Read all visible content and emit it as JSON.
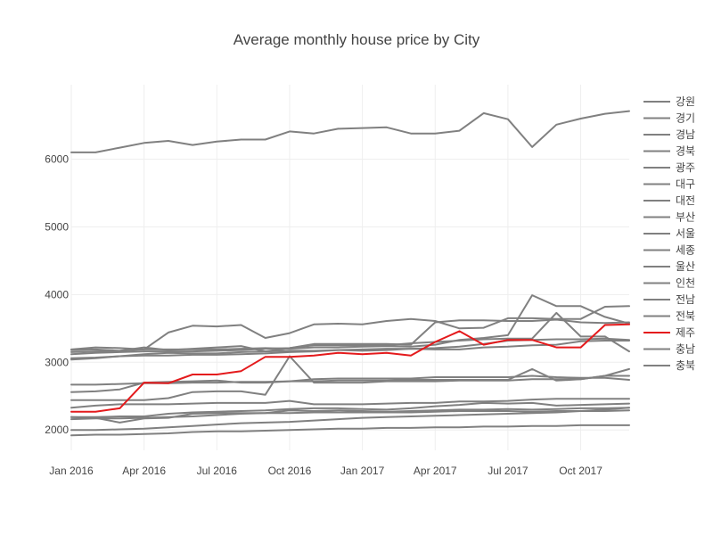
{
  "chart_data": {
    "type": "line",
    "title": "Average monthly house price by City",
    "xlabel": "",
    "ylabel": "",
    "x": [
      "2016-01",
      "2016-02",
      "2016-03",
      "2016-04",
      "2016-05",
      "2016-06",
      "2016-07",
      "2016-08",
      "2016-09",
      "2016-10",
      "2016-11",
      "2016-12",
      "2017-01",
      "2017-02",
      "2017-03",
      "2017-04",
      "2017-05",
      "2017-06",
      "2017-07",
      "2017-08",
      "2017-09",
      "2017-10",
      "2017-11",
      "2017-12"
    ],
    "x_ticks": [
      "Jan 2016",
      "Apr 2016",
      "Jul 2016",
      "Oct 2016",
      "Jan 2017",
      "Apr 2017",
      "Jul 2017",
      "Oct 2017"
    ],
    "y_ticks": [
      2000,
      3000,
      4000,
      5000,
      6000
    ],
    "ylim": [
      1700,
      7100
    ],
    "grid": true,
    "legend_position": "right",
    "colors": {
      "default": "#808080",
      "highlight": "#e41a1c"
    },
    "highlight_series": "제주",
    "series": [
      {
        "name": "강원",
        "values": [
          6100,
          6100,
          6170,
          6240,
          6270,
          6210,
          6260,
          6290,
          6290,
          6410,
          6380,
          6450,
          6460,
          6470,
          6380,
          6380,
          6420,
          6680,
          6590,
          6180,
          6510,
          6600,
          6670,
          6710
        ]
      },
      {
        "name": "경기",
        "values": [
          3180,
          3190,
          3170,
          3220,
          3180,
          3200,
          3220,
          3240,
          3160,
          3210,
          3270,
          3270,
          3270,
          3270,
          3260,
          3590,
          3620,
          3620,
          3610,
          3610,
          3630,
          3590,
          3580,
          3590
        ]
      },
      {
        "name": "경남",
        "values": [
          3060,
          3070,
          3090,
          3100,
          3100,
          3110,
          3110,
          3120,
          3130,
          3150,
          3160,
          3180,
          3190,
          3200,
          3200,
          3210,
          3230,
          3270,
          3320,
          3330,
          3340,
          3340,
          3350,
          3330
        ]
      },
      {
        "name": "경북",
        "values": [
          2560,
          2570,
          2600,
          2700,
          2710,
          2720,
          2730,
          2700,
          2700,
          2720,
          2750,
          2760,
          2760,
          2760,
          2760,
          2780,
          2780,
          2780,
          2780,
          2800,
          2780,
          2770,
          2770,
          2740
        ]
      },
      {
        "name": "광주",
        "values": [
          2440,
          2440,
          2440,
          2440,
          2470,
          2560,
          2570,
          2570,
          2520,
          3090,
          2700,
          2700,
          2700,
          2720,
          2720,
          2720,
          2730,
          2730,
          2730,
          2750,
          2750,
          2750,
          2800,
          2900
        ]
      },
      {
        "name": "대구",
        "values": [
          2670,
          2670,
          2680,
          2690,
          2690,
          2700,
          2700,
          2710,
          2710,
          2720,
          2720,
          2730,
          2730,
          2730,
          2740,
          2740,
          2740,
          2740,
          2740,
          2900,
          2730,
          2750,
          2800,
          2800
        ]
      },
      {
        "name": "대전",
        "values": [
          2190,
          2190,
          2200,
          2200,
          2240,
          2260,
          2270,
          2280,
          2290,
          2310,
          2320,
          2320,
          2310,
          2300,
          2320,
          2350,
          2370,
          2400,
          2390,
          2400,
          2360,
          2370,
          2380,
          2390
        ]
      },
      {
        "name": "부산",
        "values": [
          3190,
          3220,
          3210,
          3190,
          3440,
          3540,
          3530,
          3550,
          3360,
          3430,
          3560,
          3570,
          3560,
          3610,
          3640,
          3610,
          3500,
          3510,
          3650,
          3650,
          3640,
          3640,
          3820,
          3830
        ]
      },
      {
        "name": "서울",
        "values": [
          3040,
          3060,
          3090,
          3120,
          3140,
          3130,
          3130,
          3150,
          3160,
          3170,
          3170,
          3180,
          3170,
          3180,
          3200,
          3190,
          3190,
          3220,
          3230,
          3250,
          3260,
          3310,
          3320,
          3320
        ]
      },
      {
        "name": "세종",
        "values": [
          3150,
          3160,
          3170,
          3190,
          3190,
          3190,
          3190,
          3200,
          3210,
          3200,
          3220,
          3220,
          3230,
          3240,
          3230,
          3260,
          3330,
          3360,
          3400,
          3990,
          3830,
          3830,
          3670,
          3570
        ]
      },
      {
        "name": "울산",
        "values": [
          3120,
          3140,
          3150,
          3160,
          3160,
          3160,
          3170,
          3180,
          3200,
          3210,
          3250,
          3250,
          3250,
          3250,
          3280,
          3300,
          3320,
          3340,
          3350,
          3350,
          3730,
          3380,
          3380,
          3160
        ]
      },
      {
        "name": "인천",
        "values": [
          2160,
          2170,
          2170,
          2180,
          2190,
          2200,
          2220,
          2240,
          2250,
          2290,
          2280,
          2290,
          2280,
          2270,
          2280,
          2290,
          2300,
          2300,
          2310,
          2300,
          2310,
          2320,
          2320,
          2330
        ]
      },
      {
        "name": "전남",
        "values": [
          2330,
          2360,
          2380,
          2380,
          2380,
          2390,
          2400,
          2400,
          2400,
          2430,
          2380,
          2380,
          2380,
          2390,
          2400,
          2400,
          2420,
          2420,
          2430,
          2450,
          2460,
          2460,
          2460,
          2460
        ]
      },
      {
        "name": "전북",
        "values": [
          2000,
          2000,
          2010,
          2020,
          2040,
          2060,
          2080,
          2100,
          2110,
          2120,
          2140,
          2160,
          2180,
          2190,
          2200,
          2210,
          2220,
          2230,
          2240,
          2250,
          2260,
          2280,
          2300,
          2330
        ]
      },
      {
        "name": "제주",
        "values": [
          2270,
          2270,
          2320,
          2700,
          2690,
          2820,
          2820,
          2870,
          3080,
          3080,
          3100,
          3140,
          3120,
          3140,
          3100,
          3300,
          3460,
          3260,
          3330,
          3330,
          3220,
          3220,
          3550,
          3560
        ]
      },
      {
        "name": "충남",
        "values": [
          2190,
          2180,
          2110,
          2170,
          2180,
          2240,
          2250,
          2250,
          2250,
          2250,
          2260,
          2260,
          2260,
          2260,
          2260,
          2270,
          2280,
          2280,
          2280,
          2270,
          2280,
          2280,
          2280,
          2290
        ]
      },
      {
        "name": "충북",
        "values": [
          1920,
          1930,
          1930,
          1940,
          1950,
          1970,
          1980,
          1980,
          1990,
          2000,
          2010,
          2020,
          2020,
          2030,
          2030,
          2040,
          2040,
          2050,
          2050,
          2060,
          2060,
          2070,
          2070,
          2070
        ]
      }
    ]
  }
}
